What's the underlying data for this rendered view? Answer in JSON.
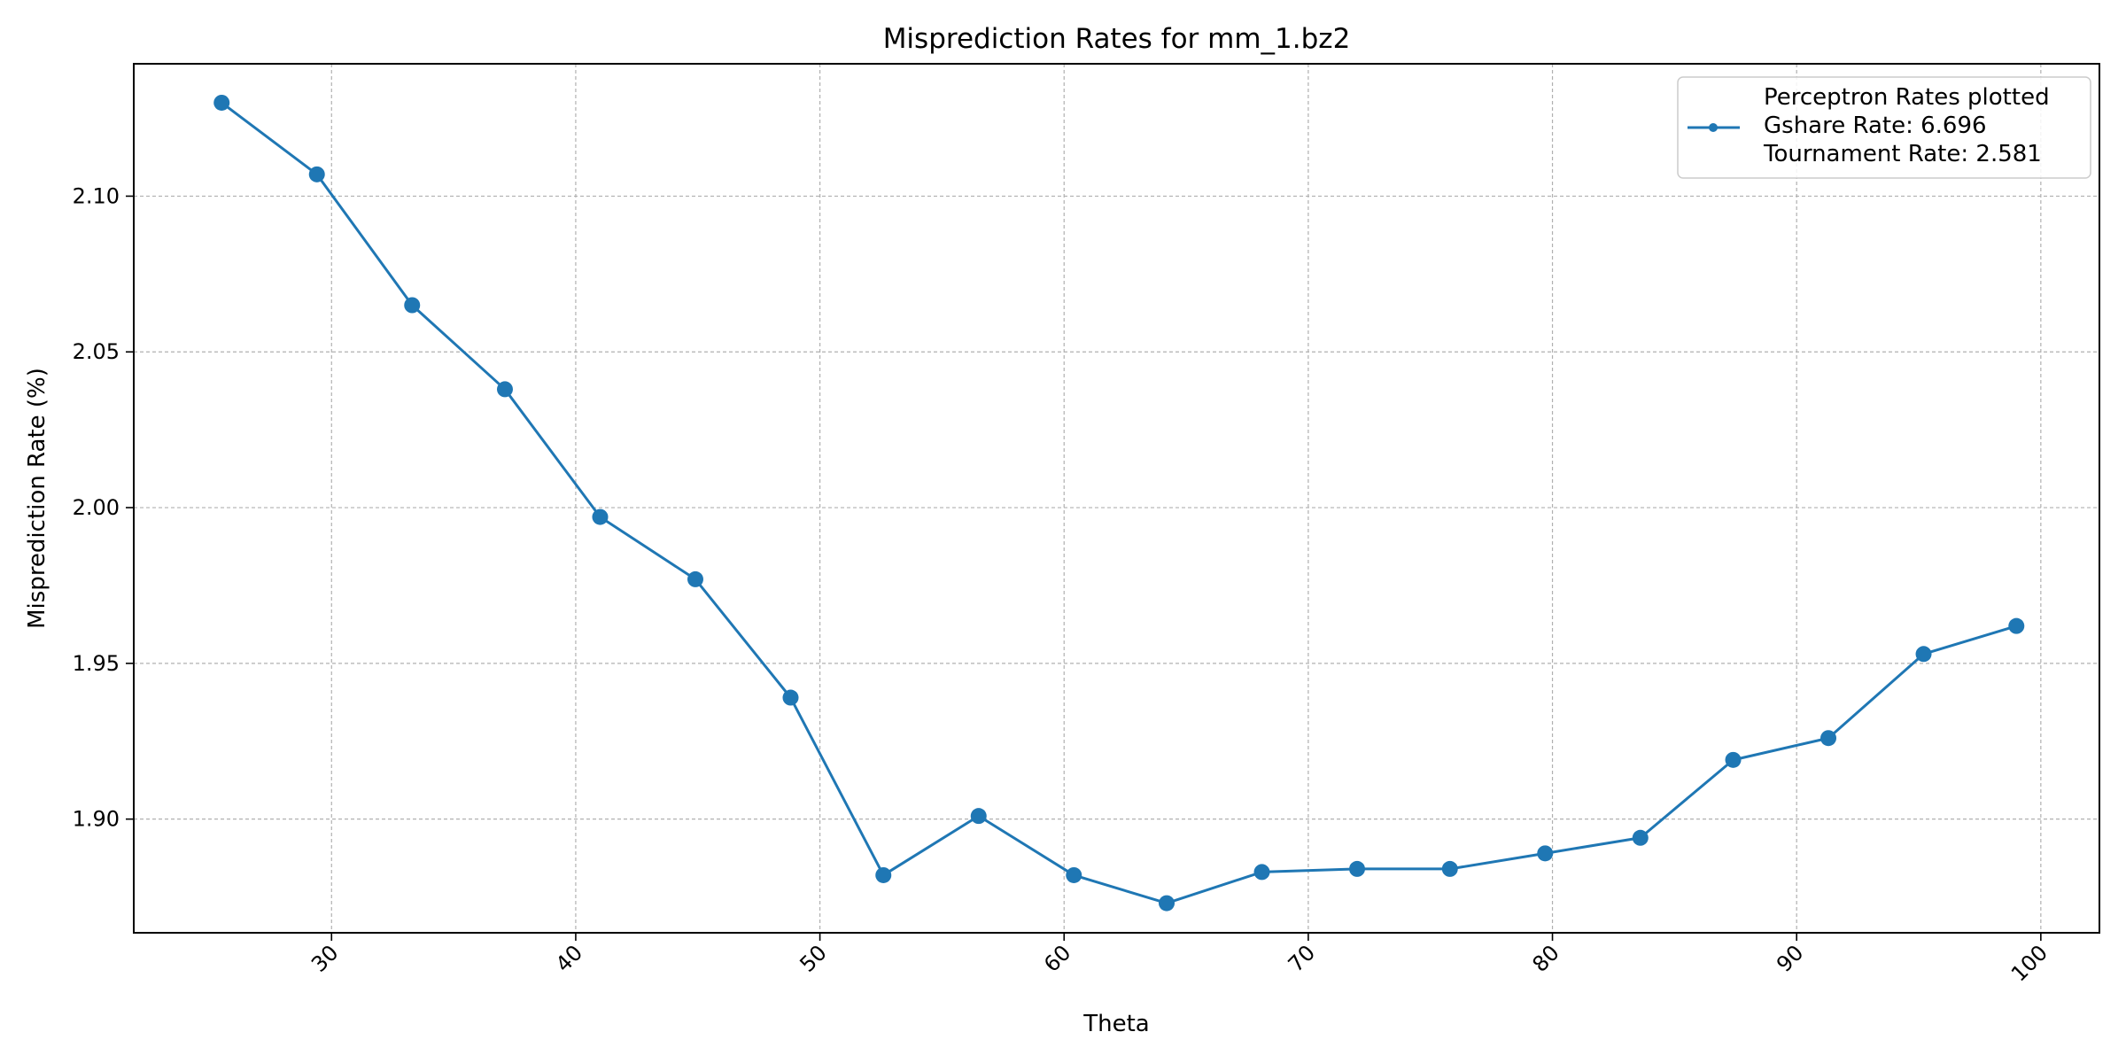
{
  "chart_data": {
    "type": "line",
    "title": "Misprediction Rates for mm_1.bz2",
    "xlabel": "Theta",
    "ylabel": "Misprediction Rate (%)",
    "xlim": [
      21.9,
      102.4
    ],
    "ylim": [
      1.8635,
      2.1425
    ],
    "xticks": [
      30,
      40,
      50,
      60,
      70,
      80,
      90,
      100
    ],
    "yticks": [
      1.9,
      1.95,
      2.0,
      2.05,
      2.1
    ],
    "ytick_labels": [
      "1.90",
      "1.95",
      "2.00",
      "2.05",
      "2.10"
    ],
    "xtick_rotation": 45,
    "grid": true,
    "legend_position": "top-right",
    "legend_lines": [
      "Perceptron Rates plotted",
      "Gshare Rate: 6.696",
      "Tournament Rate: 2.581"
    ],
    "series": [
      {
        "color": "#1f77b4",
        "x": [
          25.5,
          29.4,
          33.3,
          37.1,
          41.0,
          44.9,
          48.8,
          52.6,
          56.5,
          60.4,
          64.2,
          68.1,
          72.0,
          75.8,
          79.7,
          83.6,
          87.4,
          91.3,
          95.2,
          99.0
        ],
        "y": [
          2.13,
          2.107,
          2.065,
          2.038,
          1.997,
          1.977,
          1.939,
          1.882,
          1.901,
          1.882,
          1.873,
          1.883,
          1.884,
          1.884,
          1.889,
          1.894,
          1.919,
          1.926,
          1.953,
          1.962
        ]
      }
    ]
  }
}
